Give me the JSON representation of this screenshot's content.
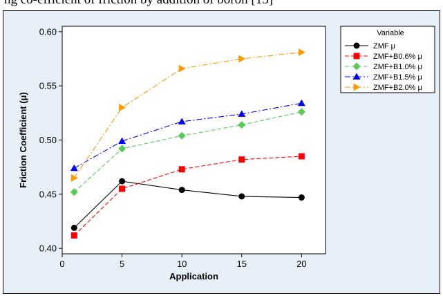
{
  "caption": {
    "text": "ng co-efficient of friction by addition of boron [15]"
  },
  "chart_data": {
    "type": "line",
    "title": "",
    "xlabel": "Application",
    "ylabel": "Friction Coefficient (μ)",
    "xlim": [
      0,
      22
    ],
    "ylim": [
      0.395,
      0.605
    ],
    "x_ticks": [
      0,
      5,
      10,
      15,
      20
    ],
    "y_ticks": [
      0.4,
      0.45,
      0.5,
      0.55,
      0.6
    ],
    "x_tick_labels": [
      "0",
      "5",
      "10",
      "15",
      "20"
    ],
    "y_tick_labels": [
      "0.40",
      "0.45",
      "0.50",
      "0.55",
      "0.60"
    ],
    "x": [
      1,
      5,
      10,
      15,
      20
    ],
    "legend_title": "Variable",
    "legend_placement": "right",
    "grid": false,
    "background_color": "#e7eff8",
    "plot_background_color": "#ffffff",
    "series": [
      {
        "name": "ZMF μ",
        "values": [
          0.419,
          0.462,
          0.454,
          0.448,
          0.447
        ],
        "color": "#000000",
        "marker": "circle",
        "line": "solid"
      },
      {
        "name": "ZMF+B0.6% μ",
        "values": [
          0.412,
          0.455,
          0.473,
          0.482,
          0.485
        ],
        "color": "#ff0000",
        "marker": "square",
        "line": "dashed"
      },
      {
        "name": "ZMF+B1.0% μ",
        "values": [
          0.452,
          0.492,
          0.504,
          0.514,
          0.526
        ],
        "color": "#55cc55",
        "marker": "diamond",
        "line": "dashed"
      },
      {
        "name": "ZMF+B1.5% μ",
        "values": [
          0.474,
          0.499,
          0.517,
          0.524,
          0.534
        ],
        "color": "#0000ff",
        "marker": "triangle-up",
        "line": "dashdot"
      },
      {
        "name": "ZMF+B2.0% μ",
        "values": [
          0.465,
          0.53,
          0.566,
          0.575,
          0.581
        ],
        "color": "#ff9900",
        "marker": "triangle-right",
        "line": "dashdot"
      }
    ]
  }
}
